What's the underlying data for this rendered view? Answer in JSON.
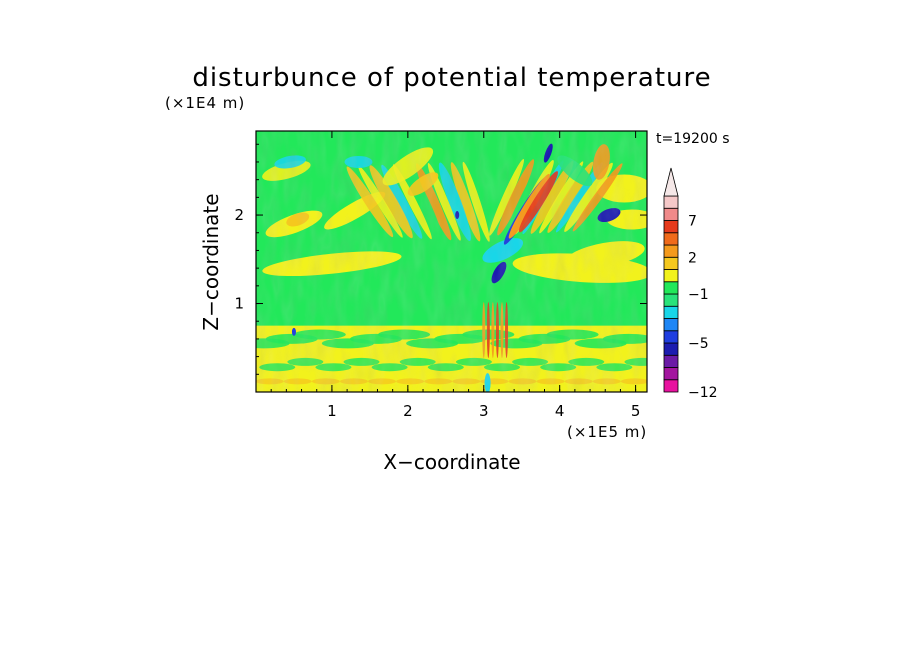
{
  "chart_data": {
    "type": "heatmap",
    "title": "disturbunce of potential temperature",
    "time_label": "t=19200 s",
    "xlabel": "X−coordinate",
    "ylabel": "Z−coordinate",
    "x_unit": "(×1E5 m)",
    "y_unit": "(×1E4 m)",
    "xlim": [
      0.0,
      5.15
    ],
    "ylim": [
      0.0,
      2.95
    ],
    "x_ticks": [
      1,
      2,
      3,
      4,
      5
    ],
    "y_ticks": [
      1,
      2
    ],
    "colorbar": {
      "labels": [
        "−12",
        "−5",
        "−1",
        "2",
        "7"
      ],
      "label_levels": [
        -12,
        -5,
        -1,
        2,
        7
      ],
      "levels": [
        -12,
        -10,
        -8,
        -6,
        -5,
        -4,
        -3,
        -2,
        -1,
        0,
        1,
        2,
        3,
        5,
        7,
        9,
        11
      ],
      "colors": [
        "#e8129f",
        "#a3159f",
        "#6b1aa6",
        "#1c1cb0",
        "#1f3ee0",
        "#1e86f5",
        "#19d6e8",
        "#29e37a",
        "#22e85a",
        "#f2f21c",
        "#f5c81e",
        "#f59a1c",
        "#f06a1a",
        "#e63a1c",
        "#f08a8a",
        "#f5c8c8"
      ],
      "extend": "max"
    },
    "field_description": "Background mostly in the -1..0 (green) and 0..2 (yellow/orange) bins; V-shaped pattern of tilted wave bands centered near x=3.1, reaching cyan/blue (about -3..-5) and red/orange (about +5..+7) near x=3.0-3.5, z=1.2-2.5; yellow/orange streaks in the lowest 0.7 (x1E4 m)"
  }
}
